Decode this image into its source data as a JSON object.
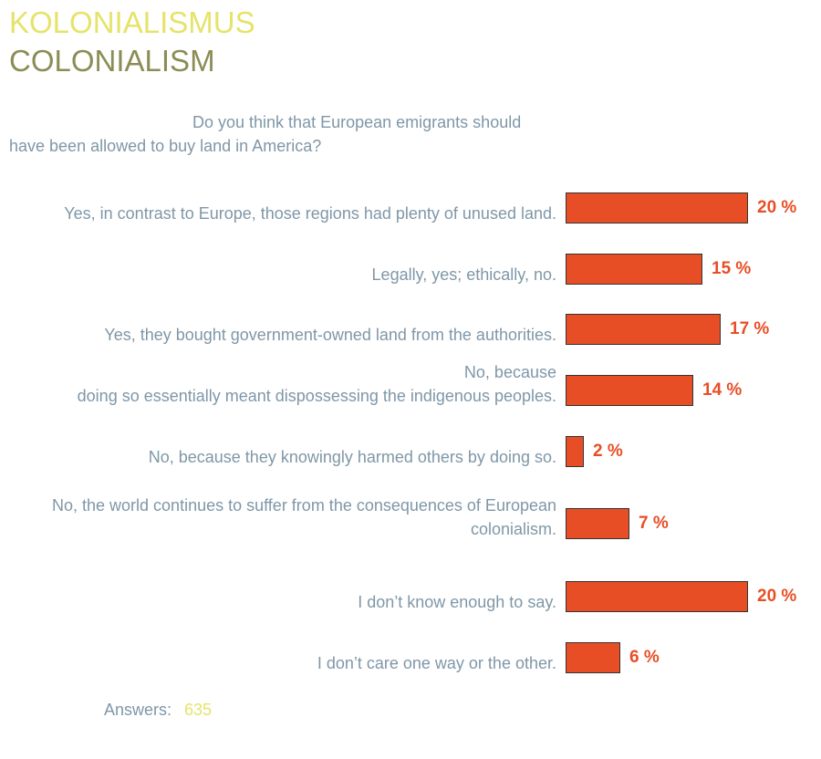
{
  "chart_data": {
    "type": "bar",
    "title": "KOLONIALISMUS",
    "subtitle": "COLONIALISM",
    "question": "Do you think that European emigrants should have been allowed to buy land in America?",
    "categories": [
      "Yes, in contrast to Europe, those regions had plenty of unused land.",
      "Legally, yes; ethically, no.",
      "Yes, they bought government-owned land from the authorities.",
      "No, because\ndoing so essentially meant dispossessing the indigenous peoples.",
      "No, because they knowingly harmed others by doing so.",
      "No, the world continues to suffer from the consequences of European colonialism.",
      "I don’t know enough to say.",
      "I don’t care one way or the other."
    ],
    "values": [
      20,
      15,
      17,
      14,
      2,
      7,
      20,
      6
    ],
    "value_labels": [
      "20 %",
      "15 %",
      "17 %",
      "14 %",
      "2 %",
      "7 %",
      "20 %",
      "6 %"
    ],
    "color": "#e84e26",
    "answers_label": "Answers:",
    "answers": 635
  }
}
